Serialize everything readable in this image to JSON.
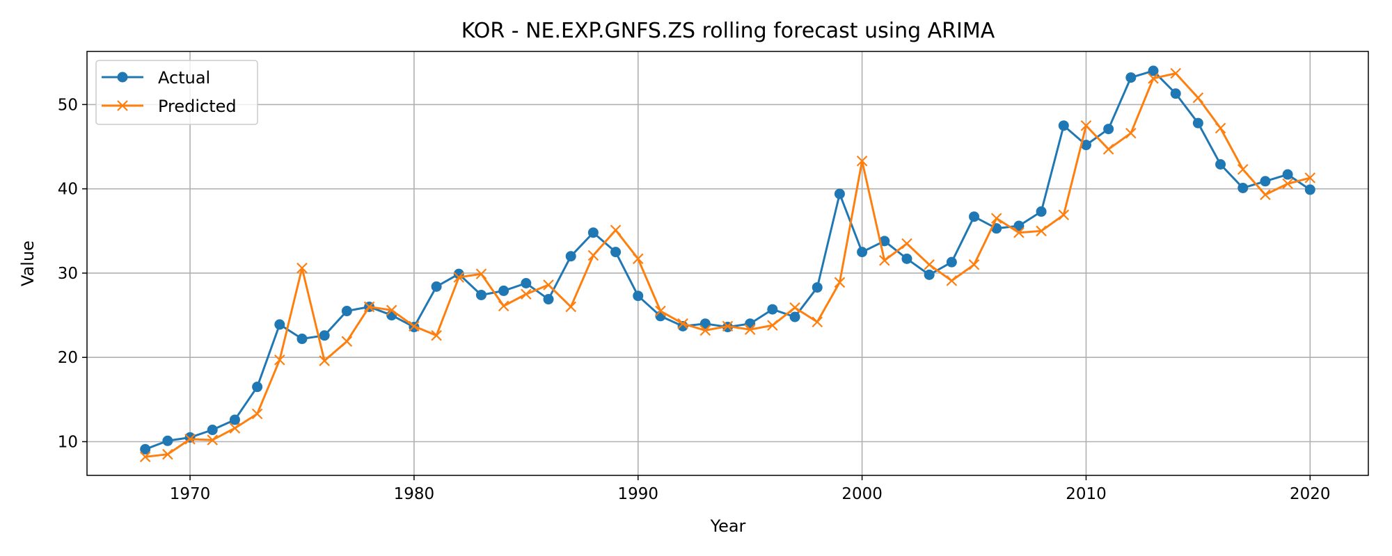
{
  "chart_data": {
    "type": "line",
    "title": "KOR - NE.EXP.GNFS.ZS rolling forecast using ARIMA",
    "xlabel": "Year",
    "ylabel": "Value",
    "xlim": [
      1965.4,
      2022.6
    ],
    "ylim": [
      6.0,
      56.3
    ],
    "x_ticks": [
      1970,
      1980,
      1990,
      2000,
      2010,
      2020
    ],
    "y_ticks": [
      10,
      20,
      30,
      40,
      50
    ],
    "grid": true,
    "legend_position": "top-left",
    "x": [
      1968,
      1969,
      1970,
      1971,
      1972,
      1973,
      1974,
      1975,
      1976,
      1977,
      1978,
      1979,
      1980,
      1981,
      1982,
      1983,
      1984,
      1985,
      1986,
      1987,
      1988,
      1989,
      1990,
      1991,
      1992,
      1993,
      1994,
      1995,
      1996,
      1997,
      1998,
      1999,
      2000,
      2001,
      2002,
      2003,
      2004,
      2005,
      2006,
      2007,
      2008,
      2009,
      2010,
      2011,
      2012,
      2013,
      2014,
      2015,
      2016,
      2017,
      2018,
      2019,
      2020
    ],
    "series": [
      {
        "name": "Actual",
        "color": "#1f77b4",
        "marker": "circle",
        "values": [
          9.1,
          10.1,
          10.5,
          11.4,
          12.6,
          16.5,
          23.9,
          22.2,
          22.6,
          25.5,
          26.0,
          25.0,
          23.6,
          28.4,
          29.9,
          27.4,
          27.9,
          28.8,
          26.9,
          32.0,
          34.8,
          32.5,
          27.3,
          24.9,
          23.7,
          24.0,
          23.6,
          24.0,
          25.7,
          24.8,
          28.3,
          39.4,
          32.5,
          33.8,
          31.7,
          29.8,
          31.3,
          36.7,
          35.3,
          35.6,
          37.3,
          47.5,
          45.2,
          47.1,
          53.2,
          54.0,
          51.3,
          47.8,
          42.9,
          40.1,
          40.9,
          41.7,
          39.9
        ]
      },
      {
        "name": "Predicted",
        "color": "#ff7f0e",
        "marker": "x",
        "values": [
          8.2,
          8.5,
          10.3,
          10.2,
          11.6,
          13.3,
          19.7,
          30.6,
          19.6,
          21.9,
          26.0,
          25.6,
          23.7,
          22.6,
          29.5,
          29.9,
          26.1,
          27.5,
          28.6,
          26.0,
          32.1,
          35.1,
          31.7,
          25.5,
          24.0,
          23.2,
          23.7,
          23.3,
          23.8,
          25.9,
          24.2,
          28.9,
          43.3,
          31.5,
          33.5,
          31.0,
          29.1,
          31.0,
          36.5,
          34.8,
          35.0,
          36.9,
          47.5,
          44.7,
          46.6,
          53.1,
          53.7,
          50.8,
          47.2,
          42.3,
          39.3,
          40.6,
          41.3
        ]
      }
    ]
  }
}
